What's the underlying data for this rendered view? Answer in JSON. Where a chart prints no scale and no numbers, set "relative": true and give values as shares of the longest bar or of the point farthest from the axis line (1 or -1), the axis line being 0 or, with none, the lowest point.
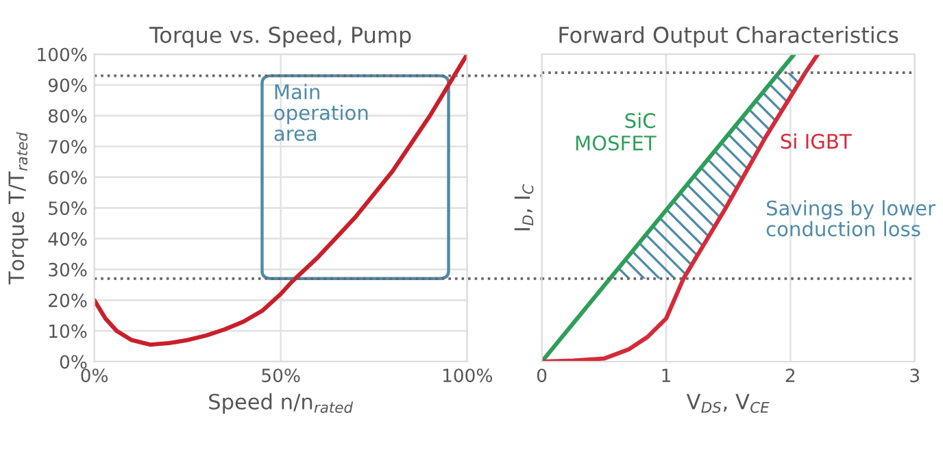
{
  "chart_data": [
    {
      "type": "line",
      "title": "Torque vs. Speed, Pump",
      "xlabel": "Speed n/n$_{rated}$",
      "ylabel": "Torque T/T$_{rated}$",
      "x": [
        0,
        3,
        6,
        10,
        15,
        20,
        25,
        30,
        35,
        40,
        45,
        50,
        53,
        60,
        70,
        80,
        90,
        96,
        100
      ],
      "series": [
        {
          "color": "#c8202a",
          "values": [
            20,
            14,
            10,
            7,
            5.5,
            6,
            7,
            8.5,
            10.5,
            13,
            16.5,
            22,
            26,
            34,
            47,
            62,
            80,
            92,
            100
          ]
        }
      ],
      "xlim": [
        0,
        100
      ],
      "xticks": [
        {
          "value": 0,
          "label": "0%"
        },
        {
          "value": 50,
          "label": "50%"
        },
        {
          "value": 100,
          "label": "100%"
        }
      ],
      "ylim": [
        0,
        100
      ],
      "yticks": [
        {
          "value": 0,
          "label": "0%"
        },
        {
          "value": 10,
          "label": "10%"
        },
        {
          "value": 20,
          "label": "20%"
        },
        {
          "value": 30,
          "label": "30%"
        },
        {
          "value": 40,
          "label": "40%"
        },
        {
          "value": 50,
          "label": "50%"
        },
        {
          "value": 60,
          "label": "60%"
        },
        {
          "value": 70,
          "label": "70%"
        },
        {
          "value": 80,
          "label": "80%"
        },
        {
          "value": 90,
          "label": "90%"
        },
        {
          "value": 100,
          "label": "100%"
        }
      ],
      "ref_lines": [
        {
          "axis": "y",
          "value": 27,
          "line_style": "dotted"
        },
        {
          "axis": "y",
          "value": 93,
          "line_style": "dotted"
        }
      ],
      "annotations": [
        "Main\noperation\narea"
      ],
      "grid": true,
      "legend": false
    },
    {
      "type": "line",
      "title": "Forward Output Characteristics",
      "xlabel": "V$_{DS}$, V$_{CE}$",
      "ylabel": "I$_{D}$, I$_{C}$",
      "relative": true,
      "series": [
        {
          "name": "SiC\nMOSFET",
          "color": "#2e9e5a",
          "x": [
            0,
            2.03
          ],
          "values": [
            0,
            1.0
          ]
        },
        {
          "name": "Si IGBT",
          "color": "#d42a3a",
          "x": [
            0,
            0.25,
            0.5,
            0.7,
            0.85,
            1.0,
            1.14,
            1.48,
            1.8,
            2.12,
            2.22
          ],
          "values": [
            0,
            0.003,
            0.01,
            0.04,
            0.08,
            0.14,
            0.27,
            0.5,
            0.73,
            0.94,
            1.0
          ]
        }
      ],
      "xlim": [
        0,
        3
      ],
      "xticks": [
        0,
        1,
        2,
        3
      ],
      "ref_lines": [
        {
          "axis": "y",
          "value": 0.27,
          "line_style": "dotted"
        },
        {
          "axis": "y",
          "value": 0.94,
          "line_style": "dotted"
        }
      ],
      "annotations": [
        "Savings by lower\nconduction loss"
      ],
      "grid": "x",
      "legend": false,
      "tick_labels": "x"
    }
  ]
}
